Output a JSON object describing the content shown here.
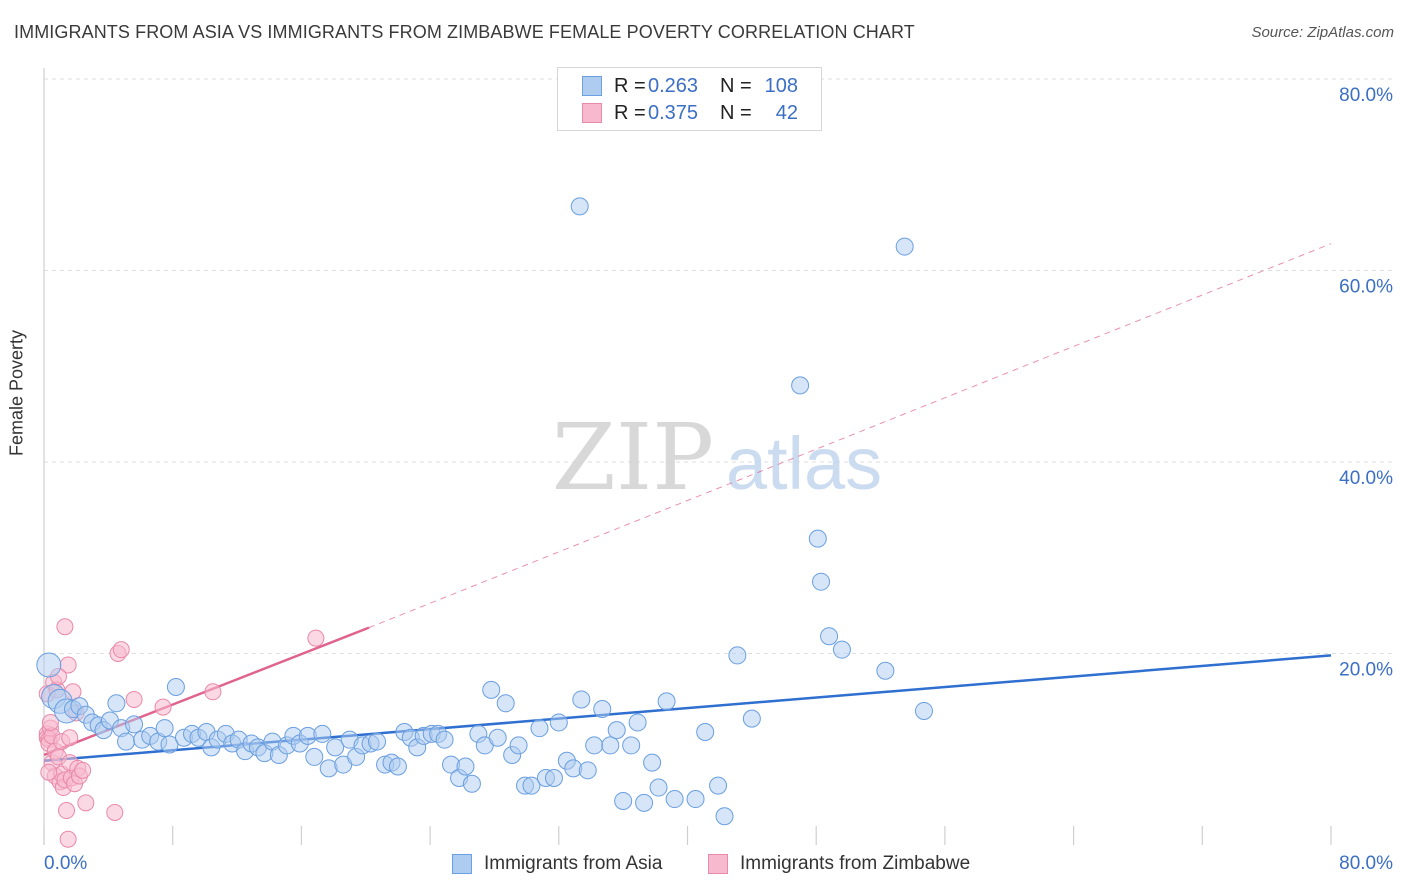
{
  "title": "IMMIGRANTS FROM ASIA VS IMMIGRANTS FROM ZIMBABWE FEMALE POVERTY CORRELATION CHART",
  "source": "Source: ZipAtlas.com",
  "watermark": {
    "zip": "ZIP",
    "atlas": "atlas"
  },
  "legend": {
    "asia": {
      "r_label": "R =",
      "r_value": "0.263",
      "n_label": "N =",
      "n_value": "108"
    },
    "zim": {
      "r_label": "R =",
      "r_value": "0.375",
      "n_label": "N =",
      "n_value": "42"
    }
  },
  "colors": {
    "asia_fill": "#aecbf0",
    "asia_stroke": "#6a9fe0",
    "asia_line": "#2f6fd0",
    "zim_fill": "#f7b9cd",
    "zim_stroke": "#e889a8",
    "zim_line": "#e0638d",
    "tick_label": "#3b6fc4",
    "grid": "#dedede"
  },
  "chart_data": {
    "type": "scatter",
    "title": "IMMIGRANTS FROM ASIA VS IMMIGRANTS FROM ZIMBABWE FEMALE POVERTY CORRELATION CHART",
    "xlabel": "",
    "ylabel": "Female Poverty",
    "xlim": [
      0,
      80
    ],
    "ylim": [
      0,
      80
    ],
    "x_tick_labels": [
      "0.0%",
      "80.0%"
    ],
    "y_tick_labels": [
      "20.0%",
      "40.0%",
      "60.0%",
      "80.0%"
    ],
    "y_ticks": [
      20,
      40,
      60,
      80
    ],
    "series": [
      {
        "name": "Immigrants from Asia",
        "r": 0.263,
        "n": 108,
        "trend": {
          "x": [
            0,
            80
          ],
          "y": [
            8.8,
            19.8
          ],
          "dashed_extension": false
        },
        "points": [
          [
            0.3,
            18.8
          ],
          [
            0.6,
            15.5
          ],
          [
            1.0,
            15.0
          ],
          [
            1.4,
            14.0
          ],
          [
            1.8,
            14.2
          ],
          [
            2.2,
            14.5
          ],
          [
            2.6,
            13.6
          ],
          [
            3.0,
            12.8
          ],
          [
            3.4,
            12.5
          ],
          [
            3.7,
            12.0
          ],
          [
            4.1,
            13.0
          ],
          [
            4.5,
            14.8
          ],
          [
            4.8,
            12.2
          ],
          [
            5.1,
            10.8
          ],
          [
            5.6,
            12.6
          ],
          [
            6.1,
            11.0
          ],
          [
            6.6,
            11.4
          ],
          [
            7.1,
            10.8
          ],
          [
            7.5,
            12.2
          ],
          [
            7.8,
            10.5
          ],
          [
            8.2,
            16.5
          ],
          [
            8.7,
            11.2
          ],
          [
            9.2,
            11.6
          ],
          [
            9.6,
            11.2
          ],
          [
            10.1,
            11.8
          ],
          [
            10.4,
            10.2
          ],
          [
            10.8,
            11.0
          ],
          [
            11.3,
            11.6
          ],
          [
            11.7,
            10.6
          ],
          [
            12.1,
            11.0
          ],
          [
            12.5,
            9.8
          ],
          [
            12.9,
            10.6
          ],
          [
            13.3,
            10.2
          ],
          [
            13.7,
            9.6
          ],
          [
            14.2,
            10.8
          ],
          [
            14.6,
            9.4
          ],
          [
            15.1,
            10.4
          ],
          [
            15.5,
            11.4
          ],
          [
            15.9,
            10.6
          ],
          [
            16.4,
            11.4
          ],
          [
            16.8,
            9.2
          ],
          [
            17.3,
            11.6
          ],
          [
            17.7,
            8.0
          ],
          [
            18.1,
            10.2
          ],
          [
            18.6,
            8.4
          ],
          [
            19.0,
            11.0
          ],
          [
            19.4,
            9.2
          ],
          [
            19.8,
            10.4
          ],
          [
            20.3,
            10.6
          ],
          [
            20.7,
            10.8
          ],
          [
            21.2,
            8.4
          ],
          [
            21.6,
            8.6
          ],
          [
            22.0,
            8.2
          ],
          [
            22.4,
            11.8
          ],
          [
            22.8,
            11.2
          ],
          [
            23.2,
            10.2
          ],
          [
            23.6,
            11.4
          ],
          [
            24.1,
            11.6
          ],
          [
            24.5,
            11.6
          ],
          [
            24.9,
            11.0
          ],
          [
            25.3,
            8.4
          ],
          [
            25.8,
            7.0
          ],
          [
            26.2,
            8.2
          ],
          [
            26.6,
            6.4
          ],
          [
            27.0,
            11.6
          ],
          [
            27.4,
            10.4
          ],
          [
            27.8,
            16.2
          ],
          [
            28.2,
            11.2
          ],
          [
            28.7,
            14.8
          ],
          [
            29.1,
            9.4
          ],
          [
            29.5,
            10.4
          ],
          [
            29.9,
            6.2
          ],
          [
            30.3,
            6.2
          ],
          [
            30.8,
            12.2
          ],
          [
            31.2,
            7.0
          ],
          [
            31.7,
            7.0
          ],
          [
            32.0,
            12.8
          ],
          [
            32.5,
            8.8
          ],
          [
            32.9,
            8.0
          ],
          [
            33.4,
            15.2
          ],
          [
            33.8,
            7.8
          ],
          [
            34.2,
            10.4
          ],
          [
            34.7,
            14.2
          ],
          [
            35.2,
            10.4
          ],
          [
            35.6,
            12.0
          ],
          [
            36.0,
            4.6
          ],
          [
            36.5,
            10.4
          ],
          [
            36.9,
            12.8
          ],
          [
            37.3,
            4.4
          ],
          [
            37.8,
            8.6
          ],
          [
            38.2,
            6.0
          ],
          [
            38.7,
            15.0
          ],
          [
            39.2,
            4.8
          ],
          [
            40.5,
            4.8
          ],
          [
            41.1,
            11.8
          ],
          [
            41.9,
            6.2
          ],
          [
            42.3,
            3.0
          ],
          [
            44.0,
            13.2
          ],
          [
            48.8,
            21.8
          ],
          [
            49.6,
            20.4
          ],
          [
            54.7,
            14.0
          ],
          [
            43.1,
            19.8
          ],
          [
            47.0,
            48.0
          ],
          [
            53.5,
            62.5
          ],
          [
            33.3,
            66.7
          ],
          [
            48.1,
            32.0
          ],
          [
            48.3,
            27.5
          ],
          [
            52.3,
            18.2
          ]
        ]
      },
      {
        "name": "Immigrants from Zimbabwe",
        "r": 0.375,
        "n": 42,
        "trend": {
          "x": [
            0,
            20.2
          ],
          "y": [
            9.4,
            22.7
          ],
          "dashed_extension": true,
          "dashed_to": {
            "x": 80,
            "y": 62.8
          }
        },
        "points": [
          [
            0.2,
            15.8
          ],
          [
            0.2,
            11.6
          ],
          [
            0.2,
            11.2
          ],
          [
            0.3,
            11.0
          ],
          [
            0.3,
            10.6
          ],
          [
            0.4,
            12.2
          ],
          [
            0.5,
            11.4
          ],
          [
            0.5,
            8.6
          ],
          [
            0.6,
            17.0
          ],
          [
            0.7,
            9.8
          ],
          [
            0.7,
            7.2
          ],
          [
            0.8,
            16.2
          ],
          [
            0.9,
            9.2
          ],
          [
            1.0,
            6.6
          ],
          [
            1.1,
            10.8
          ],
          [
            1.1,
            7.4
          ],
          [
            1.2,
            6.0
          ],
          [
            1.3,
            6.8
          ],
          [
            1.3,
            22.8
          ],
          [
            1.4,
            3.6
          ],
          [
            1.5,
            0.6
          ],
          [
            1.5,
            18.8
          ],
          [
            1.6,
            8.6
          ],
          [
            1.7,
            7.0
          ],
          [
            1.8,
            16.0
          ],
          [
            1.9,
            6.4
          ],
          [
            2.0,
            13.8
          ],
          [
            2.1,
            8.0
          ],
          [
            2.2,
            7.2
          ],
          [
            2.6,
            4.4
          ],
          [
            4.4,
            3.4
          ],
          [
            4.6,
            20.0
          ],
          [
            4.8,
            20.4
          ],
          [
            5.6,
            15.2
          ],
          [
            7.4,
            14.4
          ],
          [
            10.5,
            16.0
          ],
          [
            16.9,
            21.6
          ],
          [
            0.4,
            12.8
          ],
          [
            0.9,
            17.6
          ],
          [
            1.6,
            11.2
          ],
          [
            0.3,
            7.6
          ],
          [
            2.4,
            7.8
          ]
        ]
      }
    ]
  },
  "bottom_legend": {
    "asia": "Immigrants from Asia",
    "zim": "Immigrants from Zimbabwe"
  }
}
